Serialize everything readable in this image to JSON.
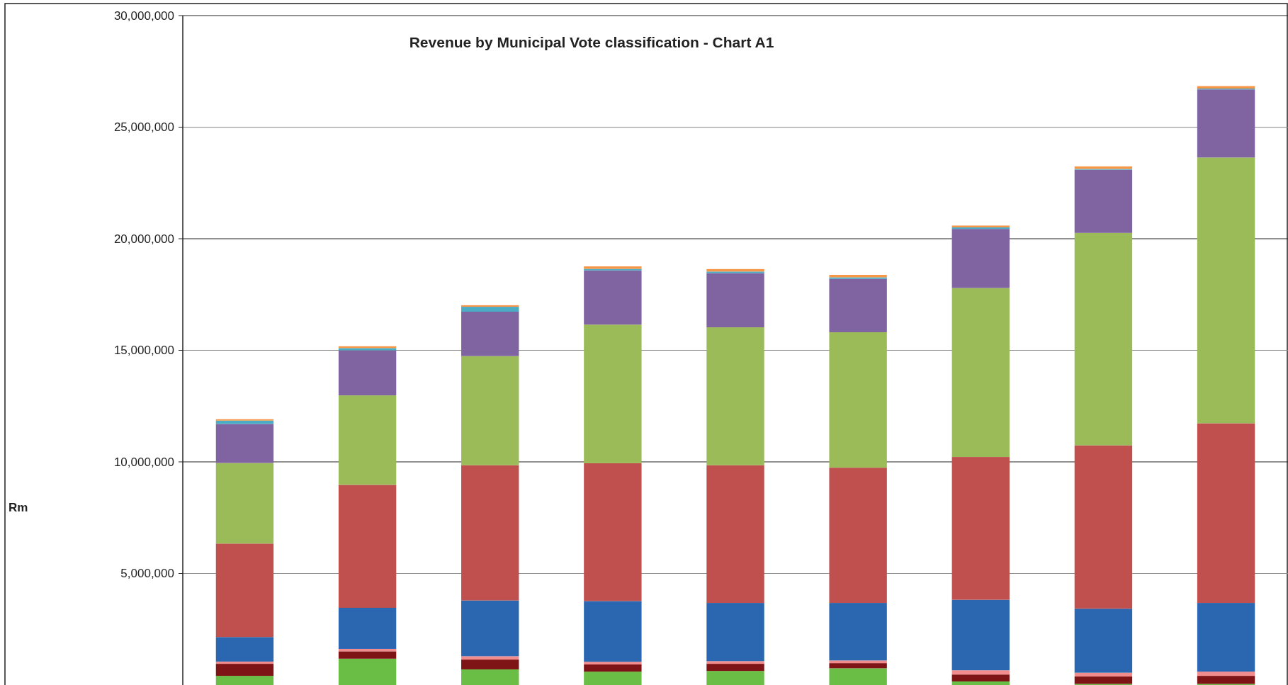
{
  "chart_data": {
    "type": "bar",
    "title": "Revenue by Municipal Vote classification - Chart A1",
    "ylabel": null,
    "categories": [
      null,
      null,
      null,
      null,
      null,
      null,
      null,
      null,
      null
    ],
    "stacked": true,
    "series": [
      {
        "color": "#6abd45",
        "values": [
          410000,
          1180000,
          700000,
          600000,
          630000,
          750000,
          160000,
          50000,
          50000
        ]
      },
      {
        "color": "#7f1416",
        "values": [
          540000,
          330000,
          440000,
          320000,
          320000,
          230000,
          310000,
          330000,
          360000
        ]
      },
      {
        "color": "#f28b8b",
        "values": [
          100000,
          110000,
          150000,
          120000,
          120000,
          120000,
          190000,
          170000,
          190000
        ]
      },
      {
        "color": "#2a67b0",
        "values": [
          1100000,
          1840000,
          2500000,
          2720000,
          2610000,
          2580000,
          3160000,
          2870000,
          3080000
        ]
      },
      {
        "color": "#c0504d",
        "values": [
          4190000,
          5510000,
          6060000,
          6180000,
          6170000,
          6060000,
          6400000,
          7320000,
          8050000
        ]
      },
      {
        "color": "#9bbb59",
        "values": [
          3610000,
          4010000,
          4890000,
          6210000,
          6180000,
          6070000,
          7570000,
          9520000,
          11910000
        ]
      },
      {
        "color": "#8064a2",
        "values": [
          1750000,
          2020000,
          1990000,
          2430000,
          2430000,
          2390000,
          2650000,
          2830000,
          3050000
        ]
      },
      {
        "color": "#4bacc6",
        "values": [
          150000,
          100000,
          220000,
          70000,
          70000,
          70000,
          70000,
          40000,
          40000
        ]
      },
      {
        "color": "#f79646",
        "values": [
          60000,
          80000,
          70000,
          110000,
          110000,
          110000,
          80000,
          110000,
          110000
        ]
      }
    ],
    "ylim": [
      0,
      30000000
    ],
    "yticks": [
      {
        "value": 5000000,
        "label": "5,000,000"
      },
      {
        "value": 10000000,
        "label": "10,000,000"
      },
      {
        "value": 15000000,
        "label": "15,000,000"
      },
      {
        "value": 20000000,
        "label": "20,000,000"
      },
      {
        "value": 25000000,
        "label": "25,000,000"
      },
      {
        "value": 30000000,
        "label": "30,000,000"
      }
    ],
    "grid": true,
    "annotations": [
      "Rm"
    ]
  }
}
